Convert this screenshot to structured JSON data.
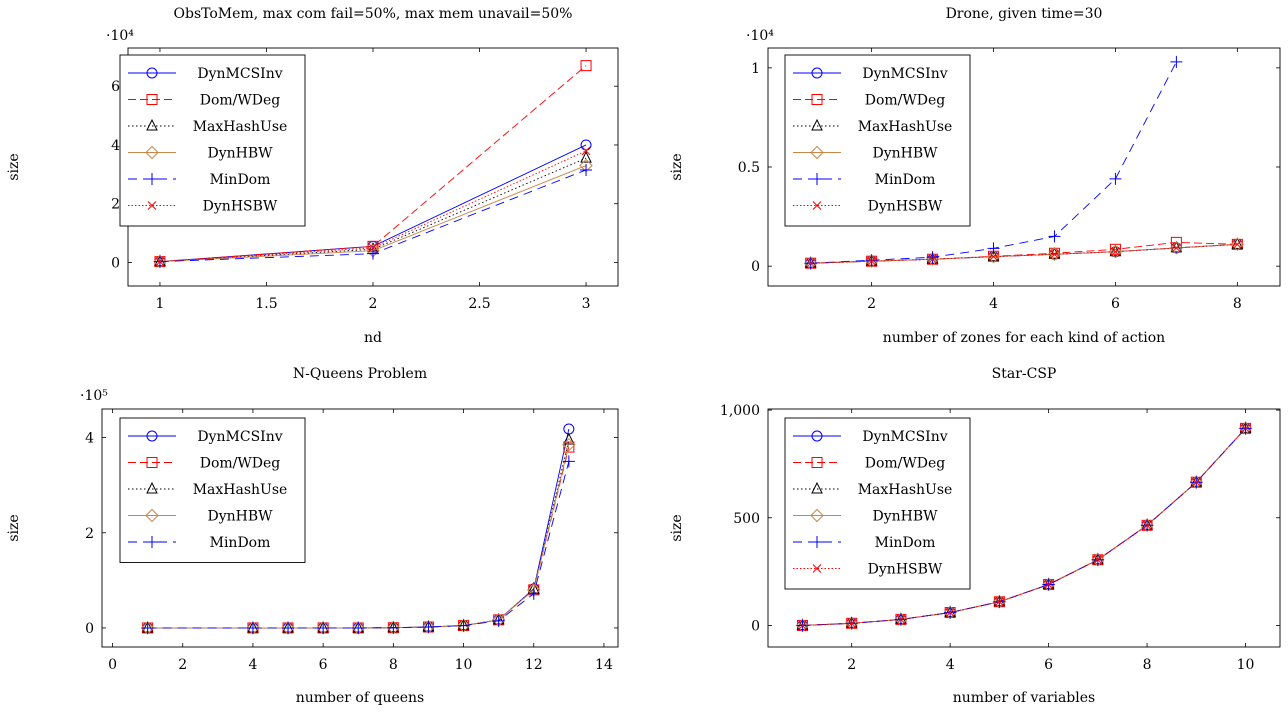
{
  "chart_data": [
    {
      "type": "line",
      "title": "ObsToMem, max com fail=50%, max mem unavail=50%",
      "xlabel": "nd",
      "ylabel": "size",
      "scale_label": "·10⁴",
      "xlim": [
        0.85,
        3.15
      ],
      "ylim": [
        -0.8,
        7.3
      ],
      "xticks": [
        1,
        1.5,
        2,
        2.5,
        3
      ],
      "yticks": [
        0,
        2,
        4,
        6
      ],
      "xtick_labels": [
        "1",
        "1.5",
        "2",
        "2.5",
        "3"
      ],
      "ytick_labels": [
        "0",
        "2",
        "4",
        "6"
      ],
      "legend": "top-left",
      "series": [
        {
          "name": "DynMCSInv",
          "x": [
            1,
            2,
            3
          ],
          "y": [
            0.03,
            0.55,
            4.0
          ]
        },
        {
          "name": "Dom/WDeg",
          "x": [
            1,
            2,
            3
          ],
          "y": [
            0.03,
            0.55,
            6.7
          ]
        },
        {
          "name": "MaxHashUse",
          "x": [
            1,
            2,
            3
          ],
          "y": [
            0.03,
            0.45,
            3.55
          ]
        },
        {
          "name": "DynHBW",
          "x": [
            1,
            2,
            3
          ],
          "y": [
            0.03,
            0.4,
            3.3
          ]
        },
        {
          "name": "MinDom",
          "x": [
            1,
            2,
            3
          ],
          "y": [
            0.03,
            0.3,
            3.15
          ]
        },
        {
          "name": "DynHSBW",
          "x": [
            1,
            2,
            3
          ],
          "y": [
            0.03,
            0.5,
            3.8
          ]
        }
      ]
    },
    {
      "type": "line",
      "title": "Drone, given time=30",
      "xlabel": "number of zones for each kind of action",
      "ylabel": "size",
      "scale_label": "·10⁴",
      "xlim": [
        0.3,
        8.7
      ],
      "ylim": [
        -0.1,
        1.1
      ],
      "xticks": [
        2,
        4,
        6,
        8
      ],
      "yticks": [
        0,
        0.5,
        1
      ],
      "xtick_labels": [
        "2",
        "4",
        "6",
        "8"
      ],
      "ytick_labels": [
        "0",
        "0.5",
        "1"
      ],
      "legend": "top-left",
      "series": [
        {
          "name": "DynMCSInv",
          "x": [
            1,
            2,
            3,
            4,
            5,
            6,
            7,
            8
          ],
          "y": [
            0.015,
            0.025,
            0.035,
            0.048,
            0.06,
            0.073,
            0.092,
            0.11
          ]
        },
        {
          "name": "Dom/WDeg",
          "x": [
            1,
            2,
            3,
            4,
            5,
            6,
            7,
            8
          ],
          "y": [
            0.015,
            0.025,
            0.035,
            0.05,
            0.065,
            0.085,
            0.12,
            0.11
          ]
        },
        {
          "name": "MaxHashUse",
          "x": [
            1,
            2,
            3,
            4,
            5,
            6,
            7,
            8
          ],
          "y": [
            0.015,
            0.025,
            0.035,
            0.048,
            0.06,
            0.073,
            0.092,
            0.11
          ]
        },
        {
          "name": "DynHBW",
          "x": [
            1,
            2,
            3,
            4,
            5,
            6,
            7,
            8
          ],
          "y": [
            0.015,
            0.025,
            0.035,
            0.048,
            0.06,
            0.073,
            0.092,
            0.11
          ]
        },
        {
          "name": "MinDom",
          "x": [
            1,
            2,
            3,
            4,
            5,
            6,
            7
          ],
          "y": [
            0.015,
            0.03,
            0.045,
            0.09,
            0.15,
            0.44,
            1.03
          ]
        },
        {
          "name": "DynHSBW",
          "x": [
            1,
            2,
            3,
            4,
            5,
            6,
            7,
            8
          ],
          "y": [
            0.015,
            0.025,
            0.035,
            0.048,
            0.06,
            0.073,
            0.092,
            0.11
          ]
        }
      ]
    },
    {
      "type": "line",
      "title": "N-Queens Problem",
      "xlabel": "number of queens",
      "ylabel": "size",
      "scale_label": "·10⁵",
      "xlim": [
        -0.3,
        14.4
      ],
      "ylim": [
        -0.4,
        4.6
      ],
      "xticks": [
        0,
        2,
        4,
        6,
        8,
        10,
        12,
        14
      ],
      "yticks": [
        0,
        2,
        4
      ],
      "xtick_labels": [
        "0",
        "2",
        "4",
        "6",
        "8",
        "10",
        "12",
        "14"
      ],
      "ytick_labels": [
        "0",
        "2",
        "4"
      ],
      "legend": "top-left",
      "series": [
        {
          "name": "DynMCSInv",
          "x": [
            1,
            4,
            5,
            6,
            7,
            8,
            9,
            10,
            11,
            12,
            13
          ],
          "y": [
            0,
            0,
            0,
            0,
            0,
            0.005,
            0.02,
            0.05,
            0.17,
            0.82,
            4.18
          ]
        },
        {
          "name": "Dom/WDeg",
          "x": [
            1,
            4,
            5,
            6,
            7,
            8,
            9,
            10,
            11,
            12,
            13
          ],
          "y": [
            0,
            0,
            0,
            0,
            0,
            0.005,
            0.02,
            0.05,
            0.17,
            0.8,
            3.8
          ]
        },
        {
          "name": "MaxHashUse",
          "x": [
            1,
            4,
            5,
            6,
            7,
            8,
            9,
            10,
            11,
            12,
            13
          ],
          "y": [
            0,
            0,
            0,
            0,
            0,
            0.005,
            0.02,
            0.05,
            0.17,
            0.82,
            3.95
          ]
        },
        {
          "name": "DynHBW",
          "x": [
            1,
            4,
            5,
            6,
            7,
            8,
            9,
            10,
            11,
            12,
            13
          ],
          "y": [
            0,
            0,
            0,
            0,
            0,
            0.005,
            0.02,
            0.05,
            0.17,
            0.8,
            3.85
          ]
        },
        {
          "name": "MinDom",
          "x": [
            1,
            4,
            5,
            6,
            7,
            8,
            9,
            10,
            11,
            12,
            13
          ],
          "y": [
            0,
            0,
            0,
            0,
            0,
            0.005,
            0.02,
            0.05,
            0.15,
            0.72,
            3.5
          ]
        }
      ]
    },
    {
      "type": "line",
      "title": "Star-CSP",
      "xlabel": "number of variables",
      "ylabel": "size",
      "scale_label": "",
      "xlim": [
        0.3,
        10.7
      ],
      "ylim": [
        -100,
        1005
      ],
      "xticks": [
        2,
        4,
        6,
        8,
        10
      ],
      "yticks": [
        0,
        500,
        1000
      ],
      "xtick_labels": [
        "2",
        "4",
        "6",
        "8",
        "10"
      ],
      "ytick_labels": [
        "0",
        "500",
        "1,000"
      ],
      "legend": "top-left",
      "series": [
        {
          "name": "DynMCSInv",
          "x": [
            1,
            2,
            3,
            4,
            5,
            6,
            7,
            8,
            9,
            10
          ],
          "y": [
            0,
            10,
            28,
            60,
            110,
            190,
            305,
            465,
            665,
            915
          ]
        },
        {
          "name": "Dom/WDeg",
          "x": [
            1,
            2,
            3,
            4,
            5,
            6,
            7,
            8,
            9,
            10
          ],
          "y": [
            0,
            10,
            28,
            60,
            110,
            190,
            305,
            465,
            665,
            915
          ]
        },
        {
          "name": "MaxHashUse",
          "x": [
            1,
            2,
            3,
            4,
            5,
            6,
            7,
            8,
            9,
            10
          ],
          "y": [
            0,
            10,
            28,
            60,
            110,
            190,
            305,
            465,
            665,
            915
          ]
        },
        {
          "name": "DynHBW",
          "x": [
            1,
            2,
            3,
            4,
            5,
            6,
            7,
            8,
            9,
            10
          ],
          "y": [
            0,
            10,
            28,
            60,
            110,
            190,
            305,
            465,
            665,
            915
          ]
        },
        {
          "name": "MinDom",
          "x": [
            1,
            2,
            3,
            4,
            5,
            6,
            7,
            8,
            9,
            10
          ],
          "y": [
            0,
            10,
            28,
            60,
            110,
            190,
            305,
            465,
            665,
            915
          ]
        },
        {
          "name": "DynHSBW",
          "x": [
            1,
            2,
            3,
            4,
            5,
            6,
            7,
            8,
            9,
            10
          ],
          "y": [
            0,
            10,
            28,
            60,
            110,
            190,
            305,
            465,
            665,
            915
          ]
        }
      ]
    }
  ],
  "series_styles": {
    "DynMCSInv": {
      "color": "#0000ff",
      "dash": "",
      "marker": "circle"
    },
    "Dom/WDeg": {
      "color": "#ff0000",
      "dash": "8 4",
      "marker": "square"
    },
    "MaxHashUse": {
      "color": "#000000",
      "dash": "1.5 2.5",
      "marker": "triangle"
    },
    "DynHBW": {
      "color": "#c8864a",
      "dash": "",
      "marker": "diamond"
    },
    "MinDom": {
      "color": "#0000ff",
      "dash": "9 6",
      "marker": "plus"
    },
    "DynHSBW": {
      "color": "#ff0000",
      "dash": "1.5 2",
      "marker": "cross"
    }
  }
}
